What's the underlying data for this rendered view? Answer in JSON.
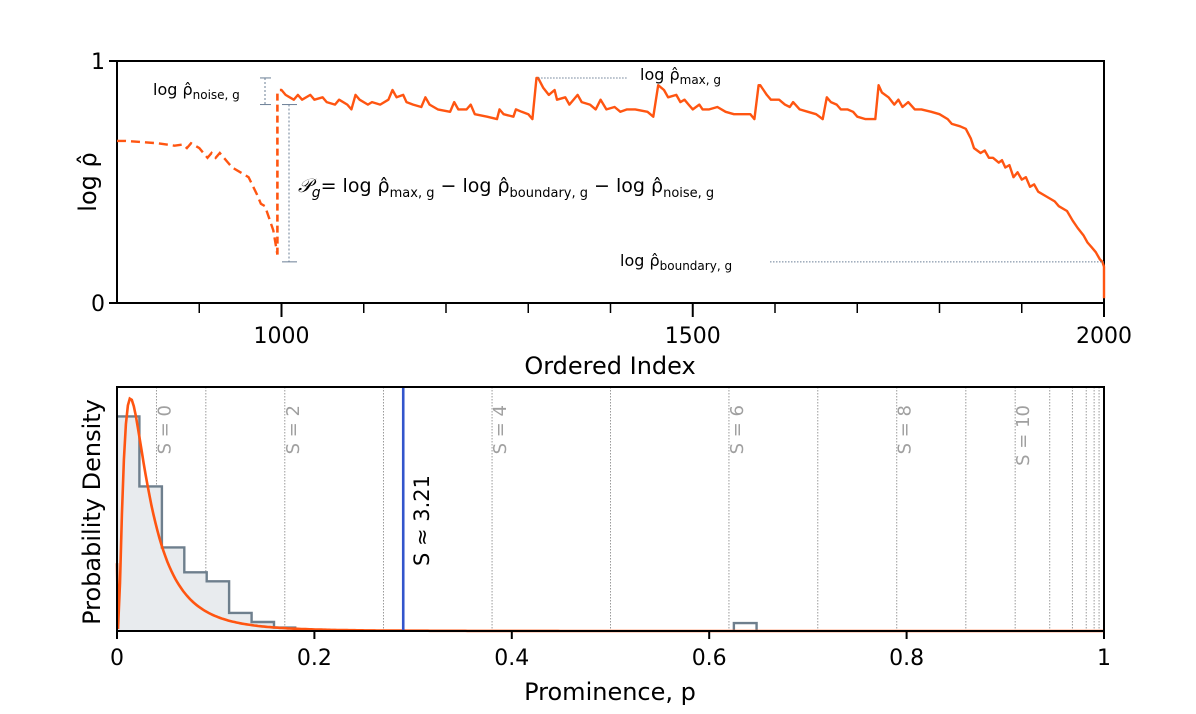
{
  "colors": {
    "curve": "#ff5511",
    "histogram": "#6e7f8d",
    "histogram_fill": "#e8ebee",
    "mean_line": "#3355cc",
    "guide": "#6b7f96",
    "sline": "#9a9a9a"
  },
  "chart_data": [
    {
      "type": "line",
      "id": "top",
      "xlabel": "Ordered Index",
      "ylabel": "log ρ̂",
      "xlim": [
        800,
        2000
      ],
      "ylim": [
        0,
        1
      ],
      "xticks": [
        {
          "value": 1000,
          "label": "1000"
        },
        {
          "value": 1500,
          "label": "1500"
        },
        {
          "value": 2000,
          "label": "2000"
        }
      ],
      "yticks": [
        {
          "value": 0,
          "label": "0"
        },
        {
          "value": 1,
          "label": "1"
        }
      ],
      "minor_xticks": [
        900,
        1100,
        1200,
        1300,
        1400,
        1600,
        1700,
        1800,
        1900
      ],
      "dashed_series": [
        [
          800,
          0.67
        ],
        [
          810,
          0.67
        ],
        [
          830,
          0.665
        ],
        [
          850,
          0.66
        ],
        [
          870,
          0.65
        ],
        [
          880,
          0.655
        ],
        [
          885,
          0.64
        ],
        [
          890,
          0.66
        ],
        [
          900,
          0.64
        ],
        [
          905,
          0.62
        ],
        [
          910,
          0.6
        ],
        [
          915,
          0.62
        ],
        [
          920,
          0.6
        ],
        [
          925,
          0.62
        ],
        [
          935,
          0.58
        ],
        [
          940,
          0.56
        ],
        [
          950,
          0.54
        ],
        [
          960,
          0.52
        ],
        [
          970,
          0.45
        ],
        [
          975,
          0.41
        ],
        [
          980,
          0.4
        ],
        [
          985,
          0.35
        ],
        [
          990,
          0.3
        ],
        [
          995,
          0.2
        ]
      ],
      "dashed_jump": [
        [
          995,
          0.2
        ],
        [
          995,
          0.88
        ]
      ],
      "solid_series": [
        [
          998,
          0.88
        ],
        [
          1000,
          0.88
        ],
        [
          1005,
          0.86
        ],
        [
          1010,
          0.85
        ],
        [
          1015,
          0.84
        ],
        [
          1020,
          0.86
        ],
        [
          1025,
          0.84
        ],
        [
          1035,
          0.86
        ],
        [
          1040,
          0.84
        ],
        [
          1050,
          0.85
        ],
        [
          1055,
          0.83
        ],
        [
          1065,
          0.82
        ],
        [
          1070,
          0.84
        ],
        [
          1080,
          0.82
        ],
        [
          1085,
          0.8
        ],
        [
          1090,
          0.86
        ],
        [
          1095,
          0.84
        ],
        [
          1105,
          0.82
        ],
        [
          1110,
          0.83
        ],
        [
          1120,
          0.82
        ],
        [
          1130,
          0.84
        ],
        [
          1135,
          0.88
        ],
        [
          1140,
          0.85
        ],
        [
          1148,
          0.86
        ],
        [
          1152,
          0.83
        ],
        [
          1160,
          0.82
        ],
        [
          1170,
          0.81
        ],
        [
          1175,
          0.85
        ],
        [
          1180,
          0.82
        ],
        [
          1190,
          0.8
        ],
        [
          1205,
          0.79
        ],
        [
          1210,
          0.83
        ],
        [
          1215,
          0.8
        ],
        [
          1225,
          0.8
        ],
        [
          1230,
          0.82
        ],
        [
          1235,
          0.78
        ],
        [
          1250,
          0.77
        ],
        [
          1262,
          0.76
        ],
        [
          1265,
          0.8
        ],
        [
          1270,
          0.78
        ],
        [
          1282,
          0.77
        ],
        [
          1285,
          0.8
        ],
        [
          1292,
          0.79
        ],
        [
          1300,
          0.78
        ],
        [
          1305,
          0.76
        ],
        [
          1310,
          0.93
        ],
        [
          1312,
          0.93
        ],
        [
          1318,
          0.89
        ],
        [
          1325,
          0.86
        ],
        [
          1332,
          0.88
        ],
        [
          1335,
          0.84
        ],
        [
          1345,
          0.85
        ],
        [
          1350,
          0.82
        ],
        [
          1360,
          0.86
        ],
        [
          1365,
          0.83
        ],
        [
          1375,
          0.82
        ],
        [
          1382,
          0.8
        ],
        [
          1388,
          0.84
        ],
        [
          1395,
          0.8
        ],
        [
          1405,
          0.81
        ],
        [
          1412,
          0.79
        ],
        [
          1420,
          0.8
        ],
        [
          1430,
          0.8
        ],
        [
          1445,
          0.79
        ],
        [
          1452,
          0.77
        ],
        [
          1458,
          0.9
        ],
        [
          1465,
          0.88
        ],
        [
          1470,
          0.85
        ],
        [
          1480,
          0.86
        ],
        [
          1485,
          0.83
        ],
        [
          1490,
          0.84
        ],
        [
          1495,
          0.82
        ],
        [
          1500,
          0.8
        ],
        [
          1508,
          0.82
        ],
        [
          1512,
          0.8
        ],
        [
          1520,
          0.8
        ],
        [
          1530,
          0.81
        ],
        [
          1540,
          0.79
        ],
        [
          1550,
          0.78
        ],
        [
          1560,
          0.78
        ],
        [
          1570,
          0.78
        ],
        [
          1575,
          0.76
        ],
        [
          1580,
          0.9
        ],
        [
          1582,
          0.9
        ],
        [
          1586,
          0.88
        ],
        [
          1590,
          0.86
        ],
        [
          1595,
          0.84
        ],
        [
          1605,
          0.84
        ],
        [
          1612,
          0.82
        ],
        [
          1618,
          0.81
        ],
        [
          1622,
          0.83
        ],
        [
          1630,
          0.8
        ],
        [
          1640,
          0.79
        ],
        [
          1650,
          0.78
        ],
        [
          1658,
          0.76
        ],
        [
          1663,
          0.85
        ],
        [
          1668,
          0.83
        ],
        [
          1675,
          0.82
        ],
        [
          1680,
          0.8
        ],
        [
          1688,
          0.8
        ],
        [
          1695,
          0.79
        ],
        [
          1700,
          0.77
        ],
        [
          1710,
          0.76
        ],
        [
          1722,
          0.76
        ],
        [
          1726,
          0.9
        ],
        [
          1730,
          0.87
        ],
        [
          1738,
          0.85
        ],
        [
          1745,
          0.82
        ],
        [
          1750,
          0.84
        ],
        [
          1755,
          0.81
        ],
        [
          1762,
          0.83
        ],
        [
          1770,
          0.8
        ],
        [
          1778,
          0.8
        ],
        [
          1790,
          0.79
        ],
        [
          1800,
          0.78
        ],
        [
          1810,
          0.76
        ],
        [
          1815,
          0.74
        ],
        [
          1825,
          0.73
        ],
        [
          1832,
          0.72
        ],
        [
          1838,
          0.68
        ],
        [
          1842,
          0.64
        ],
        [
          1850,
          0.62
        ],
        [
          1855,
          0.63
        ],
        [
          1860,
          0.6
        ],
        [
          1865,
          0.6
        ],
        [
          1872,
          0.58
        ],
        [
          1876,
          0.59
        ],
        [
          1880,
          0.56
        ],
        [
          1885,
          0.57
        ],
        [
          1890,
          0.52
        ],
        [
          1895,
          0.54
        ],
        [
          1900,
          0.51
        ],
        [
          1905,
          0.52
        ],
        [
          1910,
          0.48
        ],
        [
          1915,
          0.49
        ],
        [
          1920,
          0.46
        ],
        [
          1930,
          0.44
        ],
        [
          1940,
          0.42
        ],
        [
          1945,
          0.4
        ],
        [
          1955,
          0.38
        ],
        [
          1962,
          0.34
        ],
        [
          1968,
          0.31
        ],
        [
          1975,
          0.28
        ],
        [
          1980,
          0.25
        ],
        [
          1985,
          0.23
        ],
        [
          1990,
          0.21
        ],
        [
          1995,
          0.18
        ],
        [
          1998,
          0.17
        ],
        [
          2000,
          0.15
        ],
        [
          2000,
          0.02
        ]
      ],
      "annotations": {
        "noise": "log ρ̂",
        "noise_sub": "noise, g",
        "max": "log ρ̂",
        "max_sub": "max, g",
        "boundary": "log ρ̂",
        "boundary_sub": "boundary, g",
        "formula_lhs": "𝒫",
        "formula_lhs_sub": "g",
        "formula_rhs": "= log ρ̂",
        "formula_t1_sub": "max, g",
        "formula_minus1": " − log ρ̂",
        "formula_t2_sub": "boundary, g",
        "formula_minus2": " − log ρ̂",
        "formula_t3_sub": "noise, g"
      },
      "guide_values": {
        "noise_top": 0.93,
        "noise_bottom": 0.82,
        "boundary_level": 0.17,
        "max_level": 0.93
      }
    },
    {
      "type": "histogram",
      "id": "bottom",
      "xlabel": "Prominence, p",
      "ylabel": "Probability Density",
      "xlim": [
        0,
        1
      ],
      "xticks": [
        {
          "value": 0,
          "label": "0"
        },
        {
          "value": 0.2,
          "label": "0.2"
        },
        {
          "value": 0.4,
          "label": "0.4"
        },
        {
          "value": 0.6,
          "label": "0.6"
        },
        {
          "value": 0.8,
          "label": "0.8"
        },
        {
          "value": 1,
          "label": "1"
        }
      ],
      "bins": {
        "edges": [
          0,
          0.0227,
          0.0455,
          0.0682,
          0.0909,
          0.1136,
          0.1364,
          0.1591,
          0.1818
        ],
        "heights": [
          0.95,
          0.64,
          0.37,
          0.26,
          0.22,
          0.08,
          0.04,
          0.015
        ]
      },
      "outlier_bin": {
        "start": 0.625,
        "end": 0.648,
        "height": 0.035
      },
      "fit_curve_peak": {
        "x": 0.008,
        "y": 1.03
      },
      "ylim": [
        0,
        1.08
      ],
      "s_lines": [
        0.04,
        0.09,
        0.17,
        0.27,
        0.38,
        0.5,
        0.62,
        0.71,
        0.79,
        0.86,
        0.91,
        0.945,
        0.968,
        0.982,
        0.99,
        0.995
      ],
      "s_labels": [
        {
          "x": 0.04,
          "text": "S = 0"
        },
        {
          "x": 0.17,
          "text": "S = 2"
        },
        {
          "x": 0.38,
          "text": "S = 4"
        },
        {
          "x": 0.62,
          "text": "S = 6"
        },
        {
          "x": 0.79,
          "text": "S = 8"
        },
        {
          "x": 0.91,
          "text": "S = 10"
        }
      ],
      "mean_line": {
        "x": 0.29,
        "label": "S ≈ 3.21"
      }
    }
  ]
}
